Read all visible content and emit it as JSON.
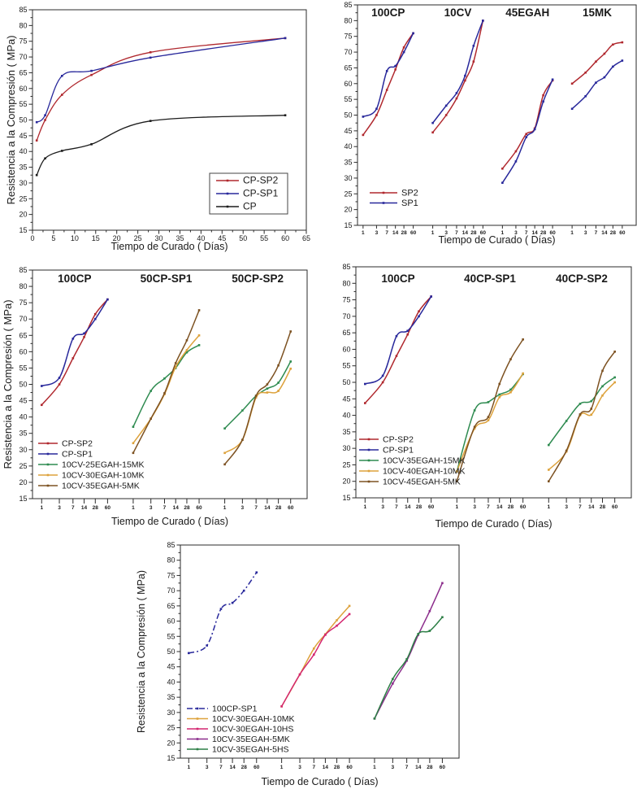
{
  "figure": {
    "title": "Compressive strength vs curing time panels",
    "background": "#ffffff",
    "y_axis_title": "Resistencia a la Compresión  ( MPa)",
    "x_axis_title": "Tiempo de Curado  ( Días)"
  },
  "colors": {
    "red": "#b0282e",
    "blue": "#28289b",
    "black": "#1c1c1c",
    "green": "#2e8b50",
    "orange": "#dda23c",
    "brown": "#7d5222",
    "magenta": "#d42670",
    "purple": "#8c2d8c",
    "forest": "#2d7f46"
  },
  "chart_data": [
    {
      "id": "cp-admixtures",
      "type": "line",
      "x": [
        1,
        3,
        7,
        14,
        28,
        60
      ],
      "x_axis": {
        "label": "Tiempo de Curado  ( Días)",
        "min": 0,
        "max": 65,
        "tick_step": 5
      },
      "y_axis": {
        "label": "Resistencia a la Compresión  ( MPa)",
        "min": 15,
        "max": 85,
        "tick_step": 5
      },
      "series": [
        {
          "name": "CP-SP2",
          "color": "#b0282e",
          "values": [
            43.5,
            50,
            58,
            64.3,
            71.5,
            76
          ]
        },
        {
          "name": "CP-SP1",
          "color": "#28289b",
          "values": [
            49.3,
            51.5,
            64,
            65.6,
            69.8,
            76
          ]
        },
        {
          "name": "CP",
          "color": "#1c1c1c",
          "values": [
            32.5,
            37.8,
            40.2,
            42.3,
            49.7,
            51.5
          ]
        }
      ],
      "legend": {
        "boxed": true,
        "entries": [
          {
            "label": "CP-SP2",
            "color": "#b0282e"
          },
          {
            "label": "CP-SP1",
            "color": "#28289b"
          },
          {
            "label": "CP",
            "color": "#1c1c1c"
          }
        ]
      }
    },
    {
      "id": "sp-type-by-binder",
      "type": "grouped-line",
      "x_days": [
        1,
        3,
        7,
        14,
        28,
        60
      ],
      "x_axis": {
        "label": "Tiempo de Curado  ( Días)"
      },
      "y_axis": {
        "min": 15,
        "max": 85,
        "tick_step": 5
      },
      "groups": [
        {
          "title": "100CP",
          "series": [
            {
              "name": "SP2",
              "color": "#b0282e",
              "values": [
                43.7,
                50,
                58,
                64.5,
                71.5,
                76
              ]
            },
            {
              "name": "SP1",
              "color": "#28289b",
              "values": [
                49.5,
                52,
                64,
                65.6,
                70,
                76
              ]
            }
          ]
        },
        {
          "title": "10CV",
          "series": [
            {
              "name": "SP2",
              "color": "#b0282e",
              "values": [
                44.5,
                50,
                55.3,
                61,
                67,
                80
              ]
            },
            {
              "name": "SP1",
              "color": "#28289b",
              "values": [
                47.5,
                53,
                57,
                62.5,
                72,
                80
              ]
            }
          ]
        },
        {
          "title": "45EGAH",
          "series": [
            {
              "name": "SP2",
              "color": "#b0282e",
              "values": [
                33,
                38.5,
                44,
                45.8,
                56.3,
                61
              ]
            },
            {
              "name": "SP1",
              "color": "#28289b",
              "values": [
                28.5,
                35.3,
                43,
                45.5,
                54.3,
                61.3
              ]
            }
          ]
        },
        {
          "title": "15MK",
          "series": [
            {
              "name": "SP2",
              "color": "#b0282e",
              "values": [
                60,
                63.5,
                67,
                69.5,
                72.4,
                73.1
              ]
            },
            {
              "name": "SP1",
              "color": "#28289b",
              "values": [
                52,
                56,
                60.3,
                62,
                65.4,
                67.3
              ]
            }
          ]
        }
      ],
      "legend": {
        "boxed": false,
        "entries": [
          {
            "label": "SP2",
            "color": "#b0282e"
          },
          {
            "label": "SP1",
            "color": "#28289b"
          }
        ]
      }
    },
    {
      "id": "50cp-ternary-blends",
      "type": "grouped-line",
      "x_days": [
        1,
        3,
        7,
        14,
        28,
        60
      ],
      "x_axis": {
        "label": "Tiempo de Curado  ( Días)"
      },
      "y_axis": {
        "label": "Resistencia a la Compresión  ( MPa)",
        "min": 15,
        "max": 85,
        "tick_step": 5
      },
      "groups": [
        {
          "title": "100CP",
          "series": [
            {
              "name": "CP-SP2",
              "color": "#b0282e",
              "values": [
                43.7,
                50,
                58,
                64.5,
                71.5,
                76
              ]
            },
            {
              "name": "CP-SP1",
              "color": "#28289b",
              "values": [
                49.5,
                52,
                64,
                65.6,
                70,
                76
              ]
            }
          ]
        },
        {
          "title": "50CP-SP1",
          "series": [
            {
              "name": "10CV-25EGAH-15MK",
              "color": "#2e8b50",
              "values": [
                37,
                48,
                51.8,
                55,
                59.8,
                62
              ]
            },
            {
              "name": "10CV-30EGAH-10MK",
              "color": "#dda23c",
              "values": [
                32,
                39.5,
                47,
                55.3,
                60.5,
                65
              ]
            },
            {
              "name": "10CV-35EGAH-5MK",
              "color": "#7d5222",
              "values": [
                29,
                39.5,
                47.3,
                56.5,
                63.5,
                72.7
              ]
            }
          ]
        },
        {
          "title": "50CP-SP2",
          "series": [
            {
              "name": "10CV-25EGAH-15MK",
              "color": "#2e8b50",
              "values": [
                36.5,
                42,
                46.5,
                48.7,
                50.5,
                57
              ]
            },
            {
              "name": "10CV-30EGAH-10MK",
              "color": "#dda23c",
              "values": [
                29,
                33,
                46,
                47.5,
                48,
                54.8
              ]
            },
            {
              "name": "10CV-35EGAH-5MK",
              "color": "#7d5222",
              "values": [
                25.5,
                33,
                46.5,
                50,
                55.8,
                66.2
              ]
            }
          ]
        }
      ],
      "legend": {
        "boxed": false,
        "entries": [
          {
            "label": "CP-SP2",
            "color": "#b0282e"
          },
          {
            "label": "CP-SP1",
            "color": "#28289b"
          },
          {
            "label": "10CV-25EGAH-15MK",
            "color": "#2e8b50"
          },
          {
            "label": "10CV-30EGAH-10MK",
            "color": "#dda23c"
          },
          {
            "label": "10CV-35EGAH-5MK",
            "color": "#7d5222"
          }
        ]
      }
    },
    {
      "id": "40cp-ternary-blends",
      "type": "grouped-line",
      "x_days": [
        1,
        3,
        7,
        14,
        28,
        60
      ],
      "x_axis": {
        "label": "Tiempo de Curado  ( Días)"
      },
      "y_axis": {
        "min": 15,
        "max": 85,
        "tick_step": 5
      },
      "groups": [
        {
          "title": "100CP",
          "series": [
            {
              "name": "CP-SP2",
              "color": "#b0282e",
              "values": [
                43.7,
                50,
                58,
                64.5,
                71.5,
                76
              ]
            },
            {
              "name": "CP-SP1",
              "color": "#28289b",
              "values": [
                49.5,
                52,
                64,
                65.6,
                70,
                76
              ]
            }
          ]
        },
        {
          "title": "40CP-SP1",
          "series": [
            {
              "name": "10CV-35EGAH-15MK",
              "color": "#2e8b50",
              "values": [
                23,
                41.5,
                44,
                46.3,
                47.8,
                52.5
              ]
            },
            {
              "name": "10CV-40EGAH-10MK",
              "color": "#dda23c",
              "values": [
                23,
                36,
                38.5,
                45.5,
                47,
                52.7
              ]
            },
            {
              "name": "10CV-45EGAH-5MK",
              "color": "#7d5222",
              "values": [
                20,
                36.5,
                39.5,
                49.5,
                57,
                63
              ]
            }
          ]
        },
        {
          "title": "40CP-SP2",
          "series": [
            {
              "name": "10CV-35EGAH-15MK",
              "color": "#2e8b50",
              "values": [
                31,
                38.3,
                43.5,
                44.3,
                48.8,
                51.5
              ]
            },
            {
              "name": "10CV-40EGAH-10MK",
              "color": "#dda23c",
              "values": [
                23.5,
                29,
                40,
                40.2,
                46,
                50
              ]
            },
            {
              "name": "10CV-45EGAH-5MK",
              "color": "#7d5222",
              "values": [
                20,
                29.3,
                40.3,
                42,
                53.5,
                59.3
              ]
            }
          ]
        }
      ],
      "legend": {
        "boxed": false,
        "entries": [
          {
            "label": "CP-SP2",
            "color": "#b0282e"
          },
          {
            "label": "CP-SP1",
            "color": "#28289b"
          },
          {
            "label": "10CV-35EGAH-15MK",
            "color": "#2e8b50"
          },
          {
            "label": "10CV-40EGAH-10MK",
            "color": "#dda23c"
          },
          {
            "label": "10CV-45EGAH-5MK",
            "color": "#7d5222"
          }
        ]
      }
    },
    {
      "id": "mk-vs-hs-blends",
      "type": "grouped-line",
      "x_days": [
        1,
        3,
        7,
        14,
        28,
        60
      ],
      "x_axis": {
        "label": "Tiempo de Curado  ( Días)"
      },
      "y_axis": {
        "label": "Resistencia a la Compresión  ( MPa)",
        "min": 15,
        "max": 85,
        "tick_step": 5
      },
      "groups": [
        {
          "title": "",
          "series": [
            {
              "name": "100CP-SP1",
              "color": "#28289b",
              "dash": "7 3 2 3",
              "values": [
                49.5,
                52,
                64,
                66,
                70,
                76
              ]
            }
          ]
        },
        {
          "title": "",
          "series": [
            {
              "name": "10CV-30EGAH-10MK",
              "color": "#dda23c",
              "values": [
                32,
                42.5,
                51,
                55.7,
                60.3,
                65
              ]
            },
            {
              "name": "10CV-30EGAH-10HS",
              "color": "#d42670",
              "values": [
                32,
                42.5,
                49,
                55.5,
                58.5,
                62.3
              ]
            }
          ]
        },
        {
          "title": "",
          "series": [
            {
              "name": "10CV-35EGAH-5MK",
              "color": "#8c2d8c",
              "values": [
                28,
                39.5,
                47,
                55.5,
                63.3,
                72.5
              ]
            },
            {
              "name": "10CV-35EGAH-5HS",
              "color": "#2d7f46",
              "values": [
                28,
                41,
                47.5,
                55.8,
                56.8,
                61.3
              ]
            }
          ]
        }
      ],
      "legend": {
        "boxed": false,
        "entries": [
          {
            "label": "100CP-SP1",
            "color": "#28289b",
            "dash": "7 3 2 3"
          },
          {
            "label": "10CV-30EGAH-10MK",
            "color": "#dda23c"
          },
          {
            "label": "10CV-30EGAH-10HS",
            "color": "#d42670"
          },
          {
            "label": "10CV-35EGAH-5MK",
            "color": "#8c2d8c"
          },
          {
            "label": "10CV-35EGAH-5HS",
            "color": "#2d7f46"
          }
        ]
      }
    }
  ]
}
